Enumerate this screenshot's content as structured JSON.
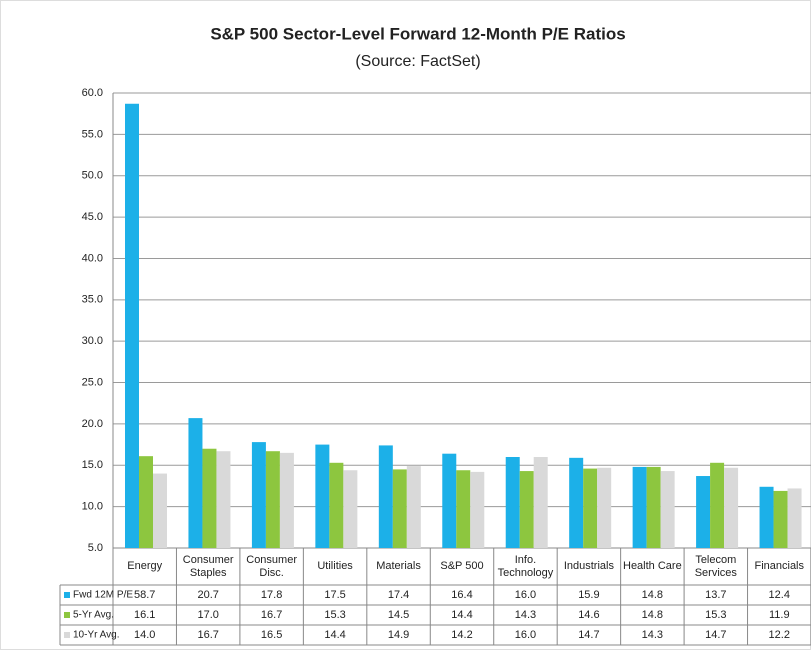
{
  "chart_data": {
    "type": "bar",
    "title": "S&P 500 Sector-Level Forward 12-Month P/E Ratios",
    "subtitle": "(Source: FactSet)",
    "categories": [
      "Energy",
      "Consumer Staples",
      "Consumer Disc.",
      "Utilities",
      "Materials",
      "S&P 500",
      "Info. Technology",
      "Industrials",
      "Health Care",
      "Telecom Services",
      "Financials"
    ],
    "series": [
      {
        "name": "Fwd 12M P/E",
        "color": "#1cb0e8",
        "values": [
          58.7,
          20.7,
          17.8,
          17.5,
          17.4,
          16.4,
          16.0,
          15.9,
          14.8,
          13.7,
          12.4
        ],
        "value_labels": [
          "58.7",
          "20.7",
          "17.8",
          "17.5",
          "17.4",
          "16.4",
          "16.0",
          "15.9",
          "14.8",
          "13.7",
          "12.4"
        ]
      },
      {
        "name": "5-Yr Avg.",
        "color": "#8dc63f",
        "values": [
          16.1,
          17.0,
          16.7,
          15.3,
          14.5,
          14.4,
          14.3,
          14.6,
          14.8,
          15.3,
          11.9
        ],
        "value_labels": [
          "16.1",
          "17.0",
          "16.7",
          "15.3",
          "14.5",
          "14.4",
          "14.3",
          "14.6",
          "14.8",
          "15.3",
          "11.9"
        ]
      },
      {
        "name": "10-Yr Avg.",
        "color": "#d9d9d9",
        "values": [
          14.0,
          16.7,
          16.5,
          14.4,
          14.9,
          14.2,
          16.0,
          14.7,
          14.3,
          14.7,
          12.2
        ],
        "value_labels": [
          "14.0",
          "16.7",
          "16.5",
          "14.4",
          "14.9",
          "14.2",
          "16.0",
          "14.7",
          "14.3",
          "14.7",
          "12.2"
        ]
      }
    ],
    "ylim": [
      5,
      60
    ],
    "yticks": [
      {
        "value": 5,
        "label": "5.0"
      },
      {
        "value": 10,
        "label": "10.0"
      },
      {
        "value": 15,
        "label": "15.0"
      },
      {
        "value": 20,
        "label": "20.0"
      },
      {
        "value": 25,
        "label": "25.0"
      },
      {
        "value": 30,
        "label": "30.0"
      },
      {
        "value": 35,
        "label": "35.0"
      },
      {
        "value": 40,
        "label": "40.0"
      },
      {
        "value": 45,
        "label": "45.0"
      },
      {
        "value": 50,
        "label": "50.0"
      },
      {
        "value": 55,
        "label": "55.0"
      },
      {
        "value": 60,
        "label": "60.0"
      }
    ],
    "grid": true
  }
}
